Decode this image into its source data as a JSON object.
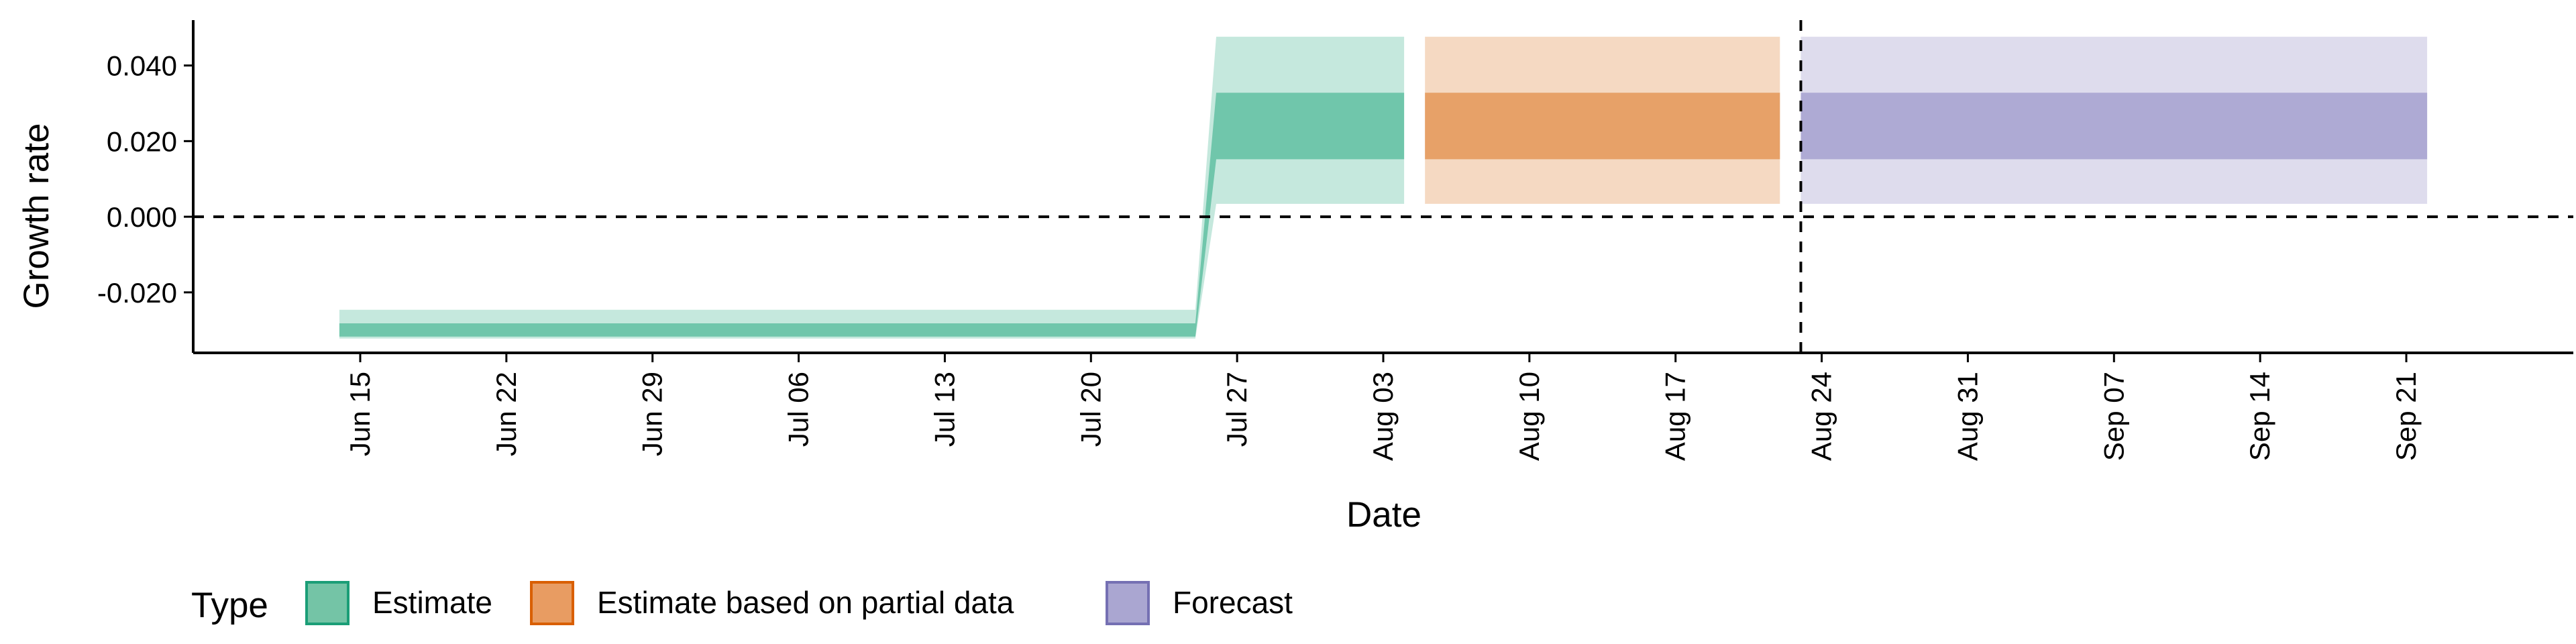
{
  "chart_data": {
    "type": "area",
    "title": "",
    "xlabel": "Date",
    "ylabel": "Growth rate",
    "x_range": [
      "2020-06-07",
      "2020-09-29"
    ],
    "ylim": [
      -0.036,
      0.052
    ],
    "x_ticks": [
      {
        "date": "2020-06-15",
        "label": "Jun 15"
      },
      {
        "date": "2020-06-22",
        "label": "Jun 22"
      },
      {
        "date": "2020-06-29",
        "label": "Jun 29"
      },
      {
        "date": "2020-07-06",
        "label": "Jul 06"
      },
      {
        "date": "2020-07-13",
        "label": "Jul 13"
      },
      {
        "date": "2020-07-20",
        "label": "Jul 20"
      },
      {
        "date": "2020-07-27",
        "label": "Jul 27"
      },
      {
        "date": "2020-08-03",
        "label": "Aug 03"
      },
      {
        "date": "2020-08-10",
        "label": "Aug 10"
      },
      {
        "date": "2020-08-17",
        "label": "Aug 17"
      },
      {
        "date": "2020-08-24",
        "label": "Aug 24"
      },
      {
        "date": "2020-08-31",
        "label": "Aug 31"
      },
      {
        "date": "2020-09-07",
        "label": "Sep 07"
      },
      {
        "date": "2020-09-14",
        "label": "Sep 14"
      },
      {
        "date": "2020-09-21",
        "label": "Sep 21"
      }
    ],
    "y_ticks": [
      {
        "value": -0.02,
        "label": "-0.020"
      },
      {
        "value": 0.0,
        "label": "0.000"
      },
      {
        "value": 0.02,
        "label": "0.020"
      },
      {
        "value": 0.04,
        "label": "0.040"
      }
    ],
    "reference_lines": {
      "horizontal_y": 0.0,
      "vertical_date": "2020-08-23"
    },
    "series": [
      {
        "name": "Estimate",
        "color": "#66c2a5",
        "points": [
          {
            "date": "2020-06-14",
            "lower_90": -0.0322,
            "lower_50": -0.0317,
            "upper_50": -0.0282,
            "upper_90": -0.0246
          },
          {
            "date": "2020-07-25",
            "lower_90": -0.0322,
            "lower_50": -0.0317,
            "upper_50": -0.0282,
            "upper_90": -0.0246
          },
          {
            "date": "2020-07-26",
            "lower_90": 0.0034,
            "lower_50": 0.0152,
            "upper_50": 0.0328,
            "upper_90": 0.0476
          },
          {
            "date": "2020-08-04",
            "lower_90": 0.0034,
            "lower_50": 0.0152,
            "upper_50": 0.0328,
            "upper_90": 0.0476
          }
        ]
      },
      {
        "name": "Estimate based on partial data",
        "color": "#e69a5e",
        "points": [
          {
            "date": "2020-08-05",
            "lower_90": 0.0034,
            "lower_50": 0.0152,
            "upper_50": 0.0328,
            "upper_90": 0.0476
          },
          {
            "date": "2020-08-22",
            "lower_90": 0.0034,
            "lower_50": 0.0152,
            "upper_50": 0.0328,
            "upper_90": 0.0476
          }
        ]
      },
      {
        "name": "Forecast",
        "color": "#a9a4d0",
        "points": [
          {
            "date": "2020-08-23",
            "lower_90": 0.0034,
            "lower_50": 0.0152,
            "upper_50": 0.0328,
            "upper_90": 0.0476
          },
          {
            "date": "2020-09-22",
            "lower_90": 0.0034,
            "lower_50": 0.0152,
            "upper_50": 0.0328,
            "upper_90": 0.0476
          }
        ]
      }
    ],
    "legend": {
      "title": "Type",
      "position": "bottom-left",
      "entries": [
        {
          "label": "Estimate",
          "fill": "#74c4a6",
          "border": "#1b9e77"
        },
        {
          "label": "Estimate based on partial data",
          "fill": "#e89c62",
          "border": "#d95f02"
        },
        {
          "label": "Forecast",
          "fill": "#aaa6d1",
          "border": "#7570b3"
        }
      ]
    },
    "inner_band_opacity": 0.9,
    "outer_band_opacity": 0.38
  }
}
